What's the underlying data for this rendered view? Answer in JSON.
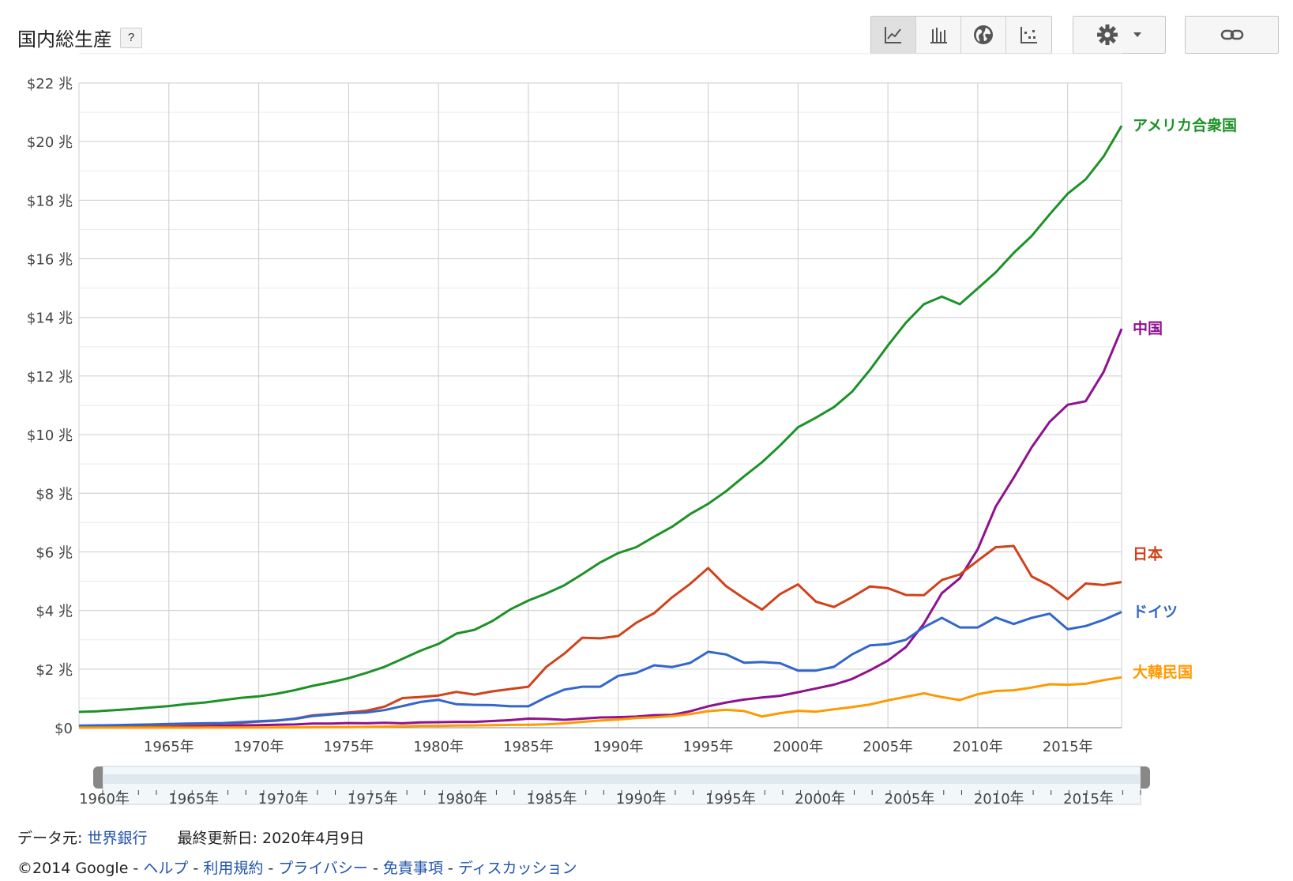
{
  "header": {
    "title": "国内総生産",
    "help_label": "?"
  },
  "toolbar": {
    "chart_types": [
      {
        "icon": "line-chart-icon",
        "active": true
      },
      {
        "icon": "bar-chart-icon",
        "active": false
      },
      {
        "icon": "globe-icon",
        "active": false
      },
      {
        "icon": "scatter-chart-icon",
        "active": false
      }
    ],
    "settings_icon": "gear-icon",
    "dropdown_icon": "chevron-down-icon",
    "link_icon": "link-icon"
  },
  "chart_data": {
    "type": "line",
    "title": "",
    "xlabel": "",
    "ylabel": "",
    "xlim": [
      1960,
      2018
    ],
    "ylim": [
      0,
      22
    ],
    "x_ticks": [
      1965,
      1970,
      1975,
      1980,
      1985,
      1990,
      1995,
      2000,
      2005,
      2010,
      2015
    ],
    "x_tick_labels": [
      "1965年",
      "1970年",
      "1975年",
      "1980年",
      "1985年",
      "1990年",
      "1995年",
      "2000年",
      "2005年",
      "2010年",
      "2015年"
    ],
    "y_ticks": [
      0,
      2,
      4,
      6,
      8,
      10,
      12,
      14,
      16,
      18,
      20,
      22
    ],
    "y_tick_labels": [
      "$0",
      "$2 兆",
      "$4 兆",
      "$6 兆",
      "$8 兆",
      "$10 兆",
      "$12 兆",
      "$14 兆",
      "$16 兆",
      "$18 兆",
      "$20 兆",
      "$22 兆"
    ],
    "grid": true,
    "legend": "right, at line ends",
    "x": [
      1960,
      1961,
      1962,
      1963,
      1964,
      1965,
      1966,
      1967,
      1968,
      1969,
      1970,
      1971,
      1972,
      1973,
      1974,
      1975,
      1976,
      1977,
      1978,
      1979,
      1980,
      1981,
      1982,
      1983,
      1984,
      1985,
      1986,
      1987,
      1988,
      1989,
      1990,
      1991,
      1992,
      1993,
      1994,
      1995,
      1996,
      1997,
      1998,
      1999,
      2000,
      2001,
      2002,
      2003,
      2004,
      2005,
      2006,
      2007,
      2008,
      2009,
      2010,
      2011,
      2012,
      2013,
      2014,
      2015,
      2016,
      2017,
      2018
    ],
    "series": [
      {
        "name": "アメリカ合衆国",
        "color": "#1e9128",
        "values": [
          0.54,
          0.56,
          0.6,
          0.64,
          0.69,
          0.74,
          0.81,
          0.86,
          0.94,
          1.02,
          1.07,
          1.16,
          1.28,
          1.43,
          1.55,
          1.69,
          1.87,
          2.08,
          2.35,
          2.63,
          2.86,
          3.21,
          3.34,
          3.64,
          4.04,
          4.34,
          4.58,
          4.86,
          5.24,
          5.64,
          5.96,
          6.16,
          6.52,
          6.86,
          7.29,
          7.64,
          8.07,
          8.58,
          9.06,
          9.63,
          10.25,
          10.58,
          10.94,
          11.46,
          12.21,
          13.04,
          13.82,
          14.45,
          14.71,
          14.45,
          14.99,
          15.54,
          16.2,
          16.78,
          17.52,
          18.22,
          18.71,
          19.49,
          20.54
        ]
      },
      {
        "name": "中国",
        "color": "#8e128e",
        "values": [
          0.06,
          0.05,
          0.05,
          0.05,
          0.06,
          0.07,
          0.08,
          0.07,
          0.07,
          0.08,
          0.09,
          0.1,
          0.11,
          0.14,
          0.14,
          0.16,
          0.15,
          0.17,
          0.15,
          0.18,
          0.19,
          0.2,
          0.2,
          0.23,
          0.26,
          0.31,
          0.3,
          0.27,
          0.31,
          0.35,
          0.36,
          0.38,
          0.43,
          0.44,
          0.56,
          0.73,
          0.86,
          0.96,
          1.03,
          1.09,
          1.21,
          1.34,
          1.47,
          1.66,
          1.96,
          2.29,
          2.75,
          3.55,
          4.59,
          5.1,
          6.09,
          7.55,
          8.53,
          9.57,
          10.44,
          11.02,
          11.14,
          12.14,
          13.61
        ]
      },
      {
        "name": "日本",
        "color": "#d0421b",
        "values": [
          0.04,
          0.05,
          0.06,
          0.07,
          0.08,
          0.09,
          0.11,
          0.12,
          0.15,
          0.17,
          0.21,
          0.24,
          0.31,
          0.42,
          0.47,
          0.52,
          0.58,
          0.72,
          1.01,
          1.05,
          1.1,
          1.22,
          1.13,
          1.24,
          1.32,
          1.4,
          2.08,
          2.53,
          3.07,
          3.05,
          3.13,
          3.58,
          3.91,
          4.45,
          4.91,
          5.45,
          4.83,
          4.41,
          4.03,
          4.56,
          4.89,
          4.3,
          4.12,
          4.45,
          4.82,
          4.76,
          4.53,
          4.52,
          5.04,
          5.23,
          5.7,
          6.16,
          6.2,
          5.16,
          4.85,
          4.39,
          4.92,
          4.87,
          4.97
        ]
      },
      {
        "name": "ドイツ",
        "color": "#3366cc",
        "values": [
          0.07,
          0.08,
          0.09,
          0.1,
          0.11,
          0.13,
          0.14,
          0.15,
          0.16,
          0.19,
          0.22,
          0.25,
          0.3,
          0.4,
          0.45,
          0.49,
          0.52,
          0.6,
          0.74,
          0.88,
          0.95,
          0.8,
          0.78,
          0.77,
          0.73,
          0.73,
          1.04,
          1.3,
          1.4,
          1.4,
          1.77,
          1.87,
          2.13,
          2.07,
          2.21,
          2.59,
          2.5,
          2.22,
          2.24,
          2.2,
          1.95,
          1.95,
          2.08,
          2.5,
          2.81,
          2.85,
          3.0,
          3.43,
          3.75,
          3.42,
          3.42,
          3.76,
          3.54,
          3.75,
          3.89,
          3.36,
          3.47,
          3.68,
          3.95
        ]
      },
      {
        "name": "大韓民国",
        "color": "#ff9900",
        "values": [
          0.004,
          0.002,
          0.003,
          0.004,
          0.003,
          0.003,
          0.004,
          0.005,
          0.006,
          0.008,
          0.009,
          0.01,
          0.011,
          0.014,
          0.02,
          0.022,
          0.03,
          0.039,
          0.052,
          0.066,
          0.065,
          0.072,
          0.078,
          0.087,
          0.097,
          0.1,
          0.117,
          0.147,
          0.2,
          0.246,
          0.28,
          0.33,
          0.355,
          0.393,
          0.463,
          0.566,
          0.61,
          0.57,
          0.384,
          0.497,
          0.576,
          0.547,
          0.627,
          0.703,
          0.793,
          0.934,
          1.053,
          1.172,
          1.047,
          0.944,
          1.144,
          1.253,
          1.278,
          1.37,
          1.484,
          1.466,
          1.5,
          1.624,
          1.72
        ]
      }
    ]
  },
  "range_selector": {
    "tick_labels": [
      "1960年",
      "1965年",
      "1970年",
      "1975年",
      "1980年",
      "1985年",
      "1990年",
      "1995年",
      "2000年",
      "2005年",
      "2010年",
      "2015年"
    ]
  },
  "footer": {
    "source_label": "データ元:",
    "source_link": "世界銀行",
    "updated_label": "最終更新日: 2020年4月9日",
    "copyright": "©2014 Google -",
    "links": [
      "ヘルプ",
      "利用規約",
      "プライバシー",
      "免責事項",
      "ディスカッション"
    ],
    "separator": "-"
  }
}
